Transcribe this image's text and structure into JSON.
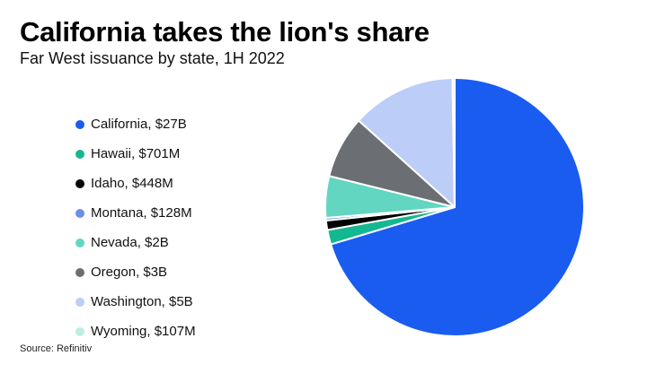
{
  "title": "California takes the lion's share",
  "subtitle": "Far West issuance by state, 1H 2022",
  "source": "Source: Refinitiv",
  "chart_data": {
    "type": "pie",
    "units": "USD",
    "start_angle": "12 o'clock",
    "direction": "clockwise",
    "slices": [
      {
        "label": "California, $27B",
        "name": "California",
        "value": 27000000000,
        "color": "#1a5cf0"
      },
      {
        "label": "Hawaii, $701M",
        "name": "Hawaii",
        "value": 701000000,
        "color": "#14b890"
      },
      {
        "label": "Idaho, $448M",
        "name": "Idaho",
        "value": 448000000,
        "color": "#000000"
      },
      {
        "label": "Montana, $128M",
        "name": "Montana",
        "value": 128000000,
        "color": "#6b8fe8"
      },
      {
        "label": "Nevada, $2B",
        "name": "Nevada",
        "value": 2000000000,
        "color": "#62d6c0"
      },
      {
        "label": "Oregon, $3B",
        "name": "Oregon",
        "value": 3000000000,
        "color": "#6b6e73"
      },
      {
        "label": "Washington, $5B",
        "name": "Washington",
        "value": 5000000000,
        "color": "#bccdf8"
      },
      {
        "label": "Wyoming, $107M",
        "name": "Wyoming",
        "value": 107000000,
        "color": "#bdeee4"
      }
    ]
  }
}
